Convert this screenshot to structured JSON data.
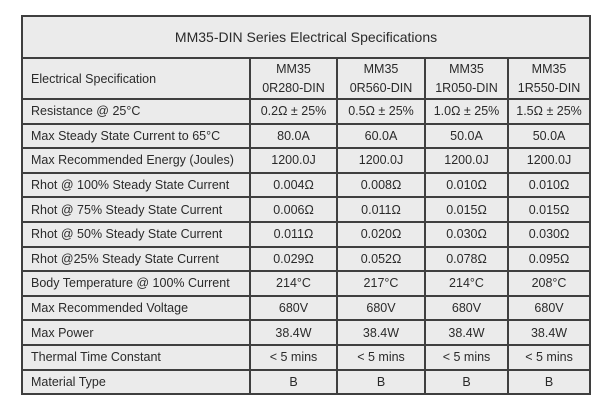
{
  "title": "MM35-DIN Series Electrical Specifications",
  "table": {
    "header_label": "Electrical Specification",
    "columns": [
      {
        "line1": "MM35",
        "line2": "0R280-DIN"
      },
      {
        "line1": "MM35",
        "line2": "0R560-DIN"
      },
      {
        "line1": "MM35",
        "line2": "1R050-DIN"
      },
      {
        "line1": "MM35",
        "line2": "1R550-DIN"
      }
    ],
    "rows": [
      {
        "label": "Resistance @ 25°C",
        "values": [
          "0.2Ω ± 25%",
          "0.5Ω ± 25%",
          "1.0Ω ± 25%",
          "1.5Ω ± 25%"
        ]
      },
      {
        "label": "Max Steady State Current to 65°C",
        "values": [
          "80.0A",
          "60.0A",
          "50.0A",
          "50.0A"
        ]
      },
      {
        "label": "Max Recommended Energy (Joules)",
        "values": [
          "1200.0J",
          "1200.0J",
          "1200.0J",
          "1200.0J"
        ]
      },
      {
        "label": "Rhot @ 100% Steady State Current",
        "values": [
          "0.004Ω",
          "0.008Ω",
          "0.010Ω",
          "0.010Ω"
        ]
      },
      {
        "label": "Rhot @ 75% Steady State Current",
        "values": [
          "0.006Ω",
          "0.011Ω",
          "0.015Ω",
          "0.015Ω"
        ]
      },
      {
        "label": "Rhot @ 50% Steady State Current",
        "values": [
          "0.011Ω",
          "0.020Ω",
          "0.030Ω",
          "0.030Ω"
        ]
      },
      {
        "label": "Rhot @25% Steady State Current",
        "values": [
          "0.029Ω",
          "0.052Ω",
          "0.078Ω",
          "0.095Ω"
        ]
      },
      {
        "label": "Body Temperature @ 100% Current",
        "values": [
          "214°C",
          "217°C",
          "214°C",
          "208°C"
        ]
      },
      {
        "label": "Max Recommended Voltage",
        "values": [
          "680V",
          "680V",
          "680V",
          "680V"
        ]
      },
      {
        "label": "Max Power",
        "values": [
          "38.4W",
          "38.4W",
          "38.4W",
          "38.4W"
        ]
      },
      {
        "label": "Thermal Time Constant",
        "values": [
          "< 5 mins",
          "< 5 mins",
          "< 5 mins",
          "< 5 mins"
        ]
      },
      {
        "label": "Material Type",
        "values": [
          "B",
          "B",
          "B",
          "B"
        ]
      }
    ]
  },
  "colors": {
    "cell_background": "#ebebeb",
    "border": "#3f3f3f",
    "text": "#2a2a2a",
    "page_background": "#ffffff"
  }
}
